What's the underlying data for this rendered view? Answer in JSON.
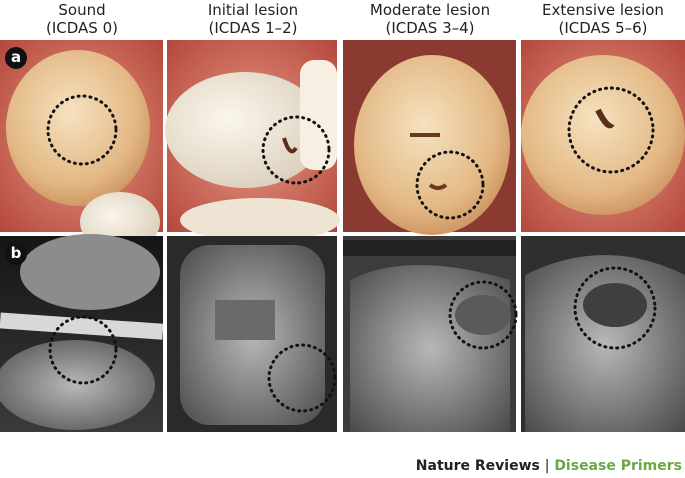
{
  "columns": [
    {
      "title": "Sound",
      "subtitle": "(ICDAS 0)"
    },
    {
      "title": "Initial lesion",
      "subtitle": "(ICDAS 1–2)"
    },
    {
      "title": "Moderate lesion",
      "subtitle": "(ICDAS 3–4)"
    },
    {
      "title": "Extensive lesion",
      "subtitle": "(ICDAS 5–6)"
    }
  ],
  "panels": [
    "a",
    "b"
  ],
  "footer": {
    "journal": "Nature Reviews",
    "separator": "|",
    "series": "Disease Primers"
  }
}
